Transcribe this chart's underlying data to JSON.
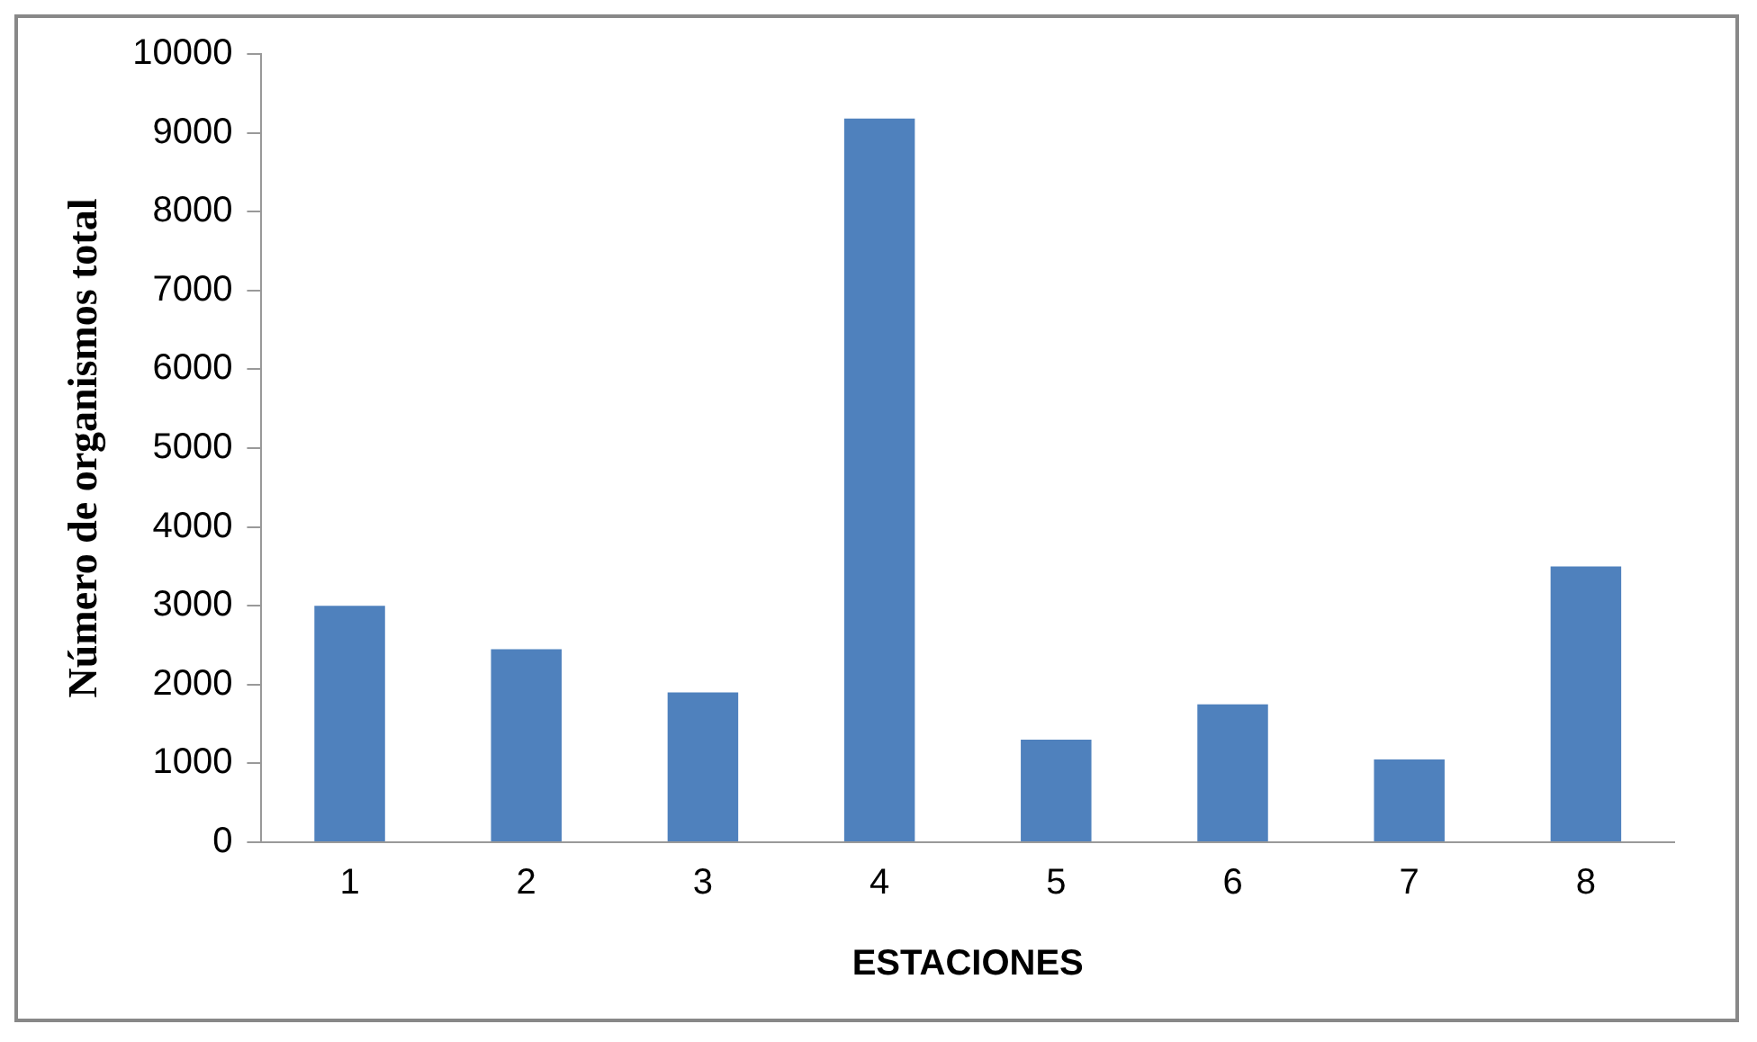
{
  "chart_data": {
    "type": "bar",
    "xlabel": "ESTACIONES",
    "ylabel": "Número de organismos total",
    "categories": [
      "1",
      "2",
      "3",
      "4",
      "5",
      "6",
      "7",
      "8"
    ],
    "values": [
      3000,
      2450,
      1900,
      9180,
      1300,
      1750,
      1050,
      3500
    ],
    "color": "#4f81bd",
    "ylim": [
      0,
      10000
    ],
    "yticks": [
      0,
      1000,
      2000,
      3000,
      4000,
      5000,
      6000,
      7000,
      8000,
      9000,
      10000
    ],
    "grid": false,
    "legend": false
  }
}
